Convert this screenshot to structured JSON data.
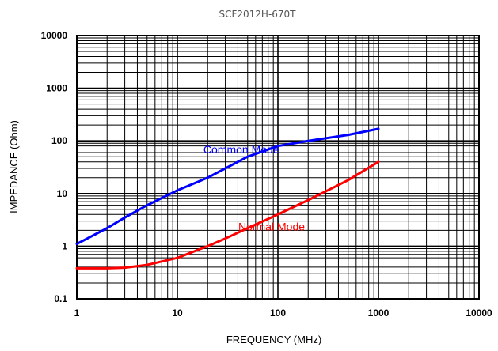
{
  "chart_data": {
    "type": "line",
    "title": "SCF2012H-670T",
    "xlabel": "FREQUENCY (MHz)",
    "ylabel": "IMPEDANCE (Ohm)",
    "x_scale": "log",
    "y_scale": "log",
    "xlim": [
      1,
      10000
    ],
    "ylim": [
      0.1,
      10000
    ],
    "x_ticks": [
      "1",
      "10",
      "100",
      "1000",
      "10000"
    ],
    "y_ticks": [
      "0.1",
      "1",
      "10",
      "100",
      "1000",
      "10000"
    ],
    "grid": true,
    "legend": "inline labels",
    "series": [
      {
        "name": "Common Mode",
        "color": "#0000ff",
        "x": [
          1,
          2,
          3,
          5,
          10,
          20,
          30,
          50,
          100,
          200,
          500,
          1000
        ],
        "y": [
          1.1,
          2.2,
          3.5,
          6.0,
          11.5,
          20,
          30,
          50,
          80,
          100,
          130,
          170
        ]
      },
      {
        "name": "Normal Mode",
        "color": "#ff0000",
        "x": [
          1,
          2,
          3,
          5,
          10,
          20,
          30,
          50,
          100,
          200,
          500,
          1000
        ],
        "y": [
          0.38,
          0.38,
          0.39,
          0.44,
          0.6,
          1.0,
          1.4,
          2.2,
          4.0,
          7.5,
          18,
          40
        ]
      }
    ]
  }
}
